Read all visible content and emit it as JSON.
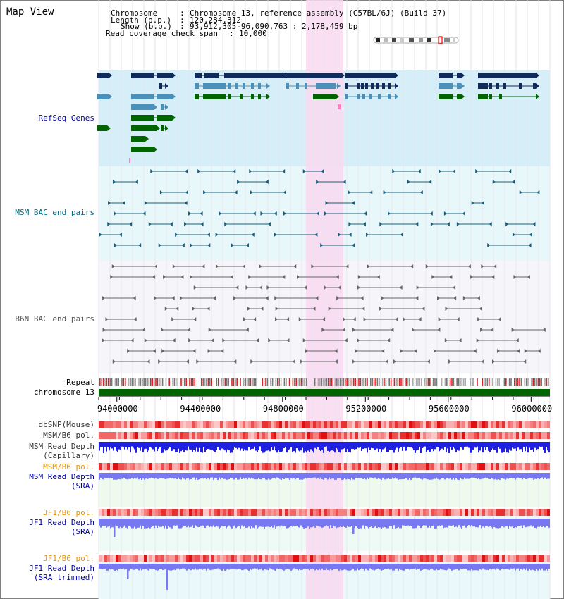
{
  "panel_title": "Map View",
  "info": {
    "chromosome_label": "Chromosome",
    "chromosome_value": "Chromosome 13, reference assembly (C57BL/6J) (Build 37)",
    "length_label": "Length (b.p.)",
    "length_value": "120,284,312",
    "show_label": "Show (b.p.)",
    "show_value": "93,912,305-96,090,763 : 2,178,459 bp",
    "coverage_label": "Read coverage check span",
    "coverage_value": "10,000"
  },
  "tracks": {
    "refseq": "RefSeq Genes",
    "msm_bac": "MSM BAC end pairs",
    "b6n_bac": "B6N BAC end pairs",
    "repeat": "Repeat",
    "chromosome": "chromosome 13",
    "dbsnp": "dbSNP(Mouse)",
    "msm_b6_pol_1": "MSM/B6 pol.",
    "msm_depth_cap_1": "MSM Read Depth",
    "msm_depth_cap_2": "(Capillary)",
    "msm_b6_pol_2": "MSM/B6 pol.",
    "msm_depth_sra_1": "MSM Read Depth",
    "msm_depth_sra_2": "(SRA)",
    "jf1_b6_pol_1": "JF1/B6 pol.",
    "jf1_depth_sra_1": "JF1 Read Depth",
    "jf1_depth_sra_2": "(SRA)",
    "jf1_b6_pol_2": "JF1/B6 pol.",
    "jf1_depth_trim_1": "JF1 Read Depth",
    "jf1_depth_trim_2": "(SRA trimmed)"
  },
  "axis": {
    "start_bp": 93912305,
    "end_bp": 96090763,
    "tick_labels": [
      "94000000",
      "94400000",
      "94800000",
      "95200000",
      "95600000",
      "96000000"
    ]
  },
  "colors": {
    "gene_navy": "#102a5c",
    "gene_blue": "#4a90b8",
    "gene_green": "#006400",
    "refseq_bg": "#d6eef8",
    "bac_bg": "#e8f8fa",
    "highlight": "#f9d8f0",
    "msm_line": "#1a5f7a",
    "b6n_line": "#666666",
    "chrom_bar": "#006400",
    "depth_blue": "#2020e0",
    "depth_light": "#7878f0",
    "label_orange": "#e89400",
    "label_navy": "#000099"
  }
}
